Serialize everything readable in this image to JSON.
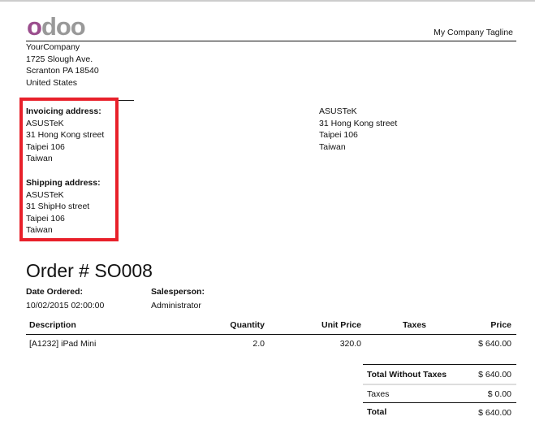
{
  "header": {
    "logo_text": "odoo",
    "tagline": "My Company Tagline"
  },
  "company": {
    "lines": [
      "YourCompany",
      "1725 Slough Ave.",
      "Scranton PA 18540",
      "United States"
    ]
  },
  "invoicing": {
    "label": "Invoicing address:",
    "lines": [
      "ASUSTeK",
      "31 Hong Kong street",
      "Taipei 106",
      "Taiwan"
    ]
  },
  "shipping": {
    "label": "Shipping address:",
    "lines": [
      "ASUSTeK",
      "31 ShipHo street",
      "Taipei 106",
      "Taiwan"
    ]
  },
  "customer": {
    "lines": [
      "ASUSTeK",
      "31 Hong Kong street",
      "Taipei 106",
      "Taiwan"
    ]
  },
  "highlight_color": "#e8202a",
  "order": {
    "title": "Order # SO008",
    "date_label": "Date Ordered:",
    "date_value": "10/02/2015 02:00:00",
    "salesperson_label": "Salesperson:",
    "salesperson_value": "Administrator"
  },
  "table": {
    "headers": [
      "Description",
      "Quantity",
      "Unit Price",
      "Taxes",
      "Price"
    ],
    "rows": [
      {
        "description": "[A1232] iPad Mini",
        "quantity": "2.0",
        "unit_price": "320.0",
        "taxes": "",
        "price": "$ 640.00"
      }
    ]
  },
  "totals": [
    {
      "label": "Total Without Taxes",
      "value": "$ 640.00"
    },
    {
      "label": "Taxes",
      "value": "$ 0.00"
    },
    {
      "label": "Total",
      "value": "$ 640.00"
    }
  ]
}
